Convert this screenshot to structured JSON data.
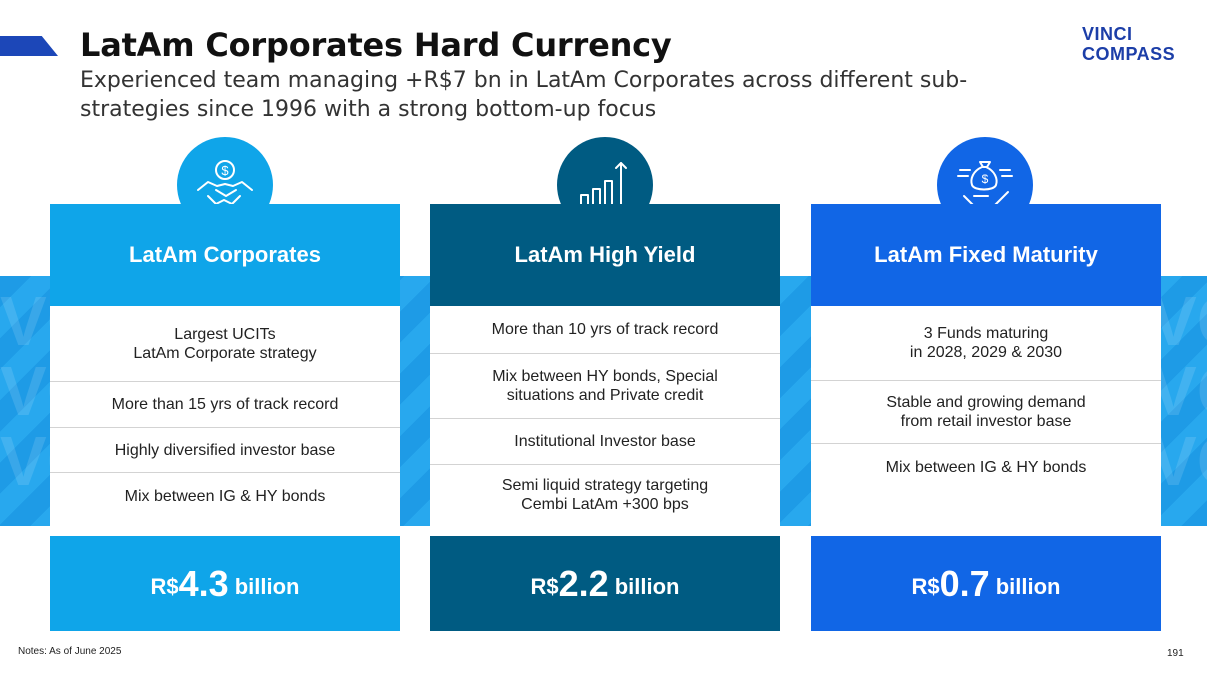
{
  "header": {
    "title": "LatAm Corporates Hard Currency",
    "subtitle": "Experienced team managing +R$7 bn in LatAm Corporates across different sub-strategies since 1996 with a strong bottom-up focus",
    "logo_line1": "VINCI",
    "logo_line2": "COMPASS"
  },
  "colors": {
    "corporates": "#0fa5e9",
    "high_yield": "#005b82",
    "fixed_maturity": "#1166e6",
    "band": "#1e9be6"
  },
  "columns": [
    {
      "icon": "handshake-dollar-icon",
      "title": "LatAm Corporates",
      "rows": [
        "Largest UCITs\nLatAm Corporate strategy",
        "More than 15 yrs of track record",
        "Highly diversified investor base",
        "Mix between IG & HY bonds"
      ],
      "aum_currency": "R$",
      "aum_value": "4.3",
      "aum_unit": "billion"
    },
    {
      "icon": "growth-bars-icon",
      "title": "LatAm High Yield",
      "rows": [
        "More than 10 yrs of track record",
        "Mix between HY bonds, Special\nsituations and Private credit",
        "Institutional Investor base",
        "Semi liquid strategy targeting\nCembi LatAm +300 bps"
      ],
      "aum_currency": "R$",
      "aum_value": "2.2",
      "aum_unit": "billion"
    },
    {
      "icon": "money-bag-hand-icon",
      "title": "LatAm Fixed Maturity",
      "rows": [
        "3 Funds maturing\nin 2028, 2029 & 2030",
        "Stable and growing demand\nfrom retail investor base",
        "Mix between IG & HY bonds"
      ],
      "aum_currency": "R$",
      "aum_value": "0.7",
      "aum_unit": "billion"
    }
  ],
  "footer": {
    "notes": "Notes: As of June 2025",
    "page_number": "191"
  }
}
